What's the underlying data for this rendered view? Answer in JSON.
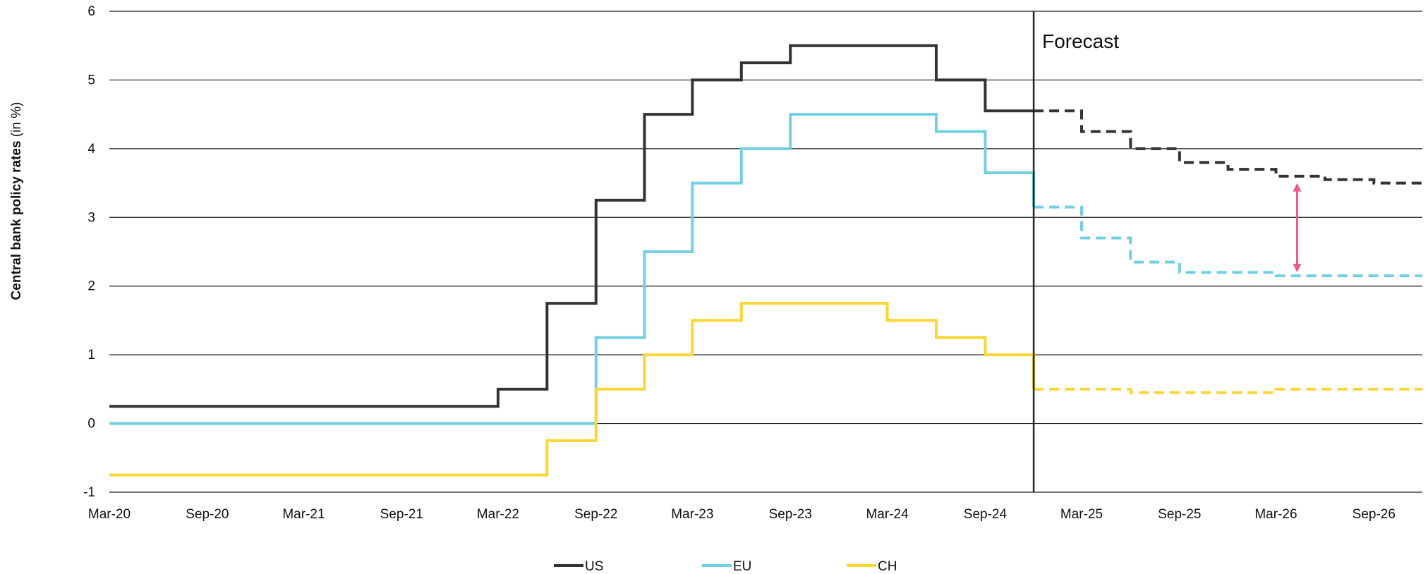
{
  "chart_data": {
    "type": "line",
    "step": true,
    "ylabel_bold": "Central bank policy rates",
    "ylabel_rest": " (in %)",
    "ylim": [
      -1,
      6
    ],
    "yticks": [
      -1,
      0,
      1,
      2,
      3,
      4,
      5,
      6
    ],
    "xlim": [
      "2020-03",
      "2026-12"
    ],
    "xticks": [
      "Mar-20",
      "Sep-20",
      "Mar-21",
      "Sep-21",
      "Mar-22",
      "Sep-22",
      "Mar-23",
      "Sep-23",
      "Mar-24",
      "Sep-24",
      "Mar-25",
      "Sep-25",
      "Mar-26",
      "Sep-26"
    ],
    "grid": "horizontal",
    "forecast_start": "2024-12",
    "forecast_label": "Forecast",
    "legend_position": "bottom-center",
    "colors": {
      "US": "#333333",
      "EU": "#73cfe3",
      "CH": "#fbd634",
      "gap_arrow": "#ee5a86"
    },
    "series": [
      {
        "name": "US",
        "points": [
          [
            "2020-03",
            0.25
          ],
          [
            "2022-03",
            0.5
          ],
          [
            "2022-06",
            1.75
          ],
          [
            "2022-09",
            3.25
          ],
          [
            "2022-12",
            4.5
          ],
          [
            "2023-03",
            5.0
          ],
          [
            "2023-06",
            5.25
          ],
          [
            "2023-09",
            5.5
          ],
          [
            "2024-06",
            5.0
          ],
          [
            "2024-09",
            4.55
          ]
        ],
        "forecast": [
          [
            "2024-12",
            4.55
          ],
          [
            "2025-03",
            4.25
          ],
          [
            "2025-06",
            4.0
          ],
          [
            "2025-09",
            3.8
          ],
          [
            "2025-12",
            3.7
          ],
          [
            "2026-03",
            3.6
          ],
          [
            "2026-06",
            3.55
          ],
          [
            "2026-09",
            3.5
          ],
          [
            "2026-12",
            3.5
          ]
        ]
      },
      {
        "name": "EU",
        "points": [
          [
            "2020-03",
            0.0
          ],
          [
            "2022-09",
            1.25
          ],
          [
            "2022-12",
            2.5
          ],
          [
            "2023-03",
            3.5
          ],
          [
            "2023-06",
            4.0
          ],
          [
            "2023-09",
            4.5
          ],
          [
            "2024-06",
            4.25
          ],
          [
            "2024-09",
            3.65
          ],
          [
            "2024-12",
            3.15
          ]
        ],
        "forecast": [
          [
            "2024-12",
            3.15
          ],
          [
            "2025-03",
            2.7
          ],
          [
            "2025-06",
            2.35
          ],
          [
            "2025-09",
            2.2
          ],
          [
            "2025-12",
            2.2
          ],
          [
            "2026-03",
            2.15
          ],
          [
            "2026-12",
            2.15
          ]
        ]
      },
      {
        "name": "CH",
        "points": [
          [
            "2020-03",
            -0.75
          ],
          [
            "2022-06",
            -0.25
          ],
          [
            "2022-09",
            0.5
          ],
          [
            "2022-12",
            1.0
          ],
          [
            "2023-03",
            1.5
          ],
          [
            "2023-06",
            1.75
          ],
          [
            "2024-03",
            1.5
          ],
          [
            "2024-06",
            1.25
          ],
          [
            "2024-09",
            1.0
          ],
          [
            "2024-12",
            0.5
          ]
        ],
        "forecast": [
          [
            "2024-12",
            0.5
          ],
          [
            "2025-06",
            0.45
          ],
          [
            "2026-03",
            0.5
          ],
          [
            "2026-12",
            0.5
          ]
        ]
      }
    ],
    "gap_arrow": {
      "x": "2026-03",
      "from": 3.5,
      "to": 2.2
    }
  }
}
